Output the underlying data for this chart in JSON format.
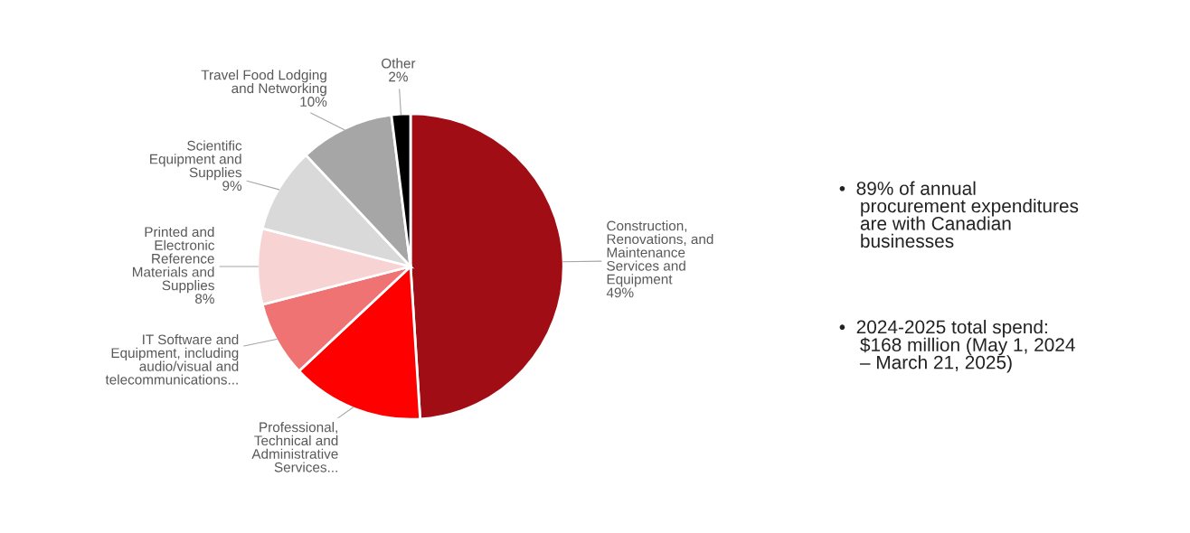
{
  "chart_data": {
    "type": "pie",
    "categories": [
      "Construction,\nRenovations, and\nMaintenance\nServices and\nEquipment",
      "Professional,\nTechnical and\nAdministrative\nServices...",
      "IT Software and\nEquipment, including\naudio/visual and\ntelecommunications...",
      "Printed and\nElectronic\nReference\nMaterials and\nSupplies",
      "Scientific\nEquipment and\nSupplies",
      "Travel Food Lodging\nand Networking",
      "Other"
    ],
    "values": [
      49,
      14,
      8,
      8,
      9,
      10,
      2
    ],
    "value_labels": [
      "49%",
      null,
      null,
      "8%",
      "9%",
      "10%",
      "2%"
    ],
    "colors": [
      "#a00d14",
      "#ff0000",
      "#ef7373",
      "#f8d3d3",
      "#d9d9d9",
      "#a6a6a6",
      "#000000"
    ],
    "annotations": [
      "•  89% of annual\n    procurement expenditures\n    are with Canadian\n    businesses",
      "•  2024-2025 total spend:\n    $168 million (May 1, 2024\n    – March 21, 2025)"
    ]
  }
}
